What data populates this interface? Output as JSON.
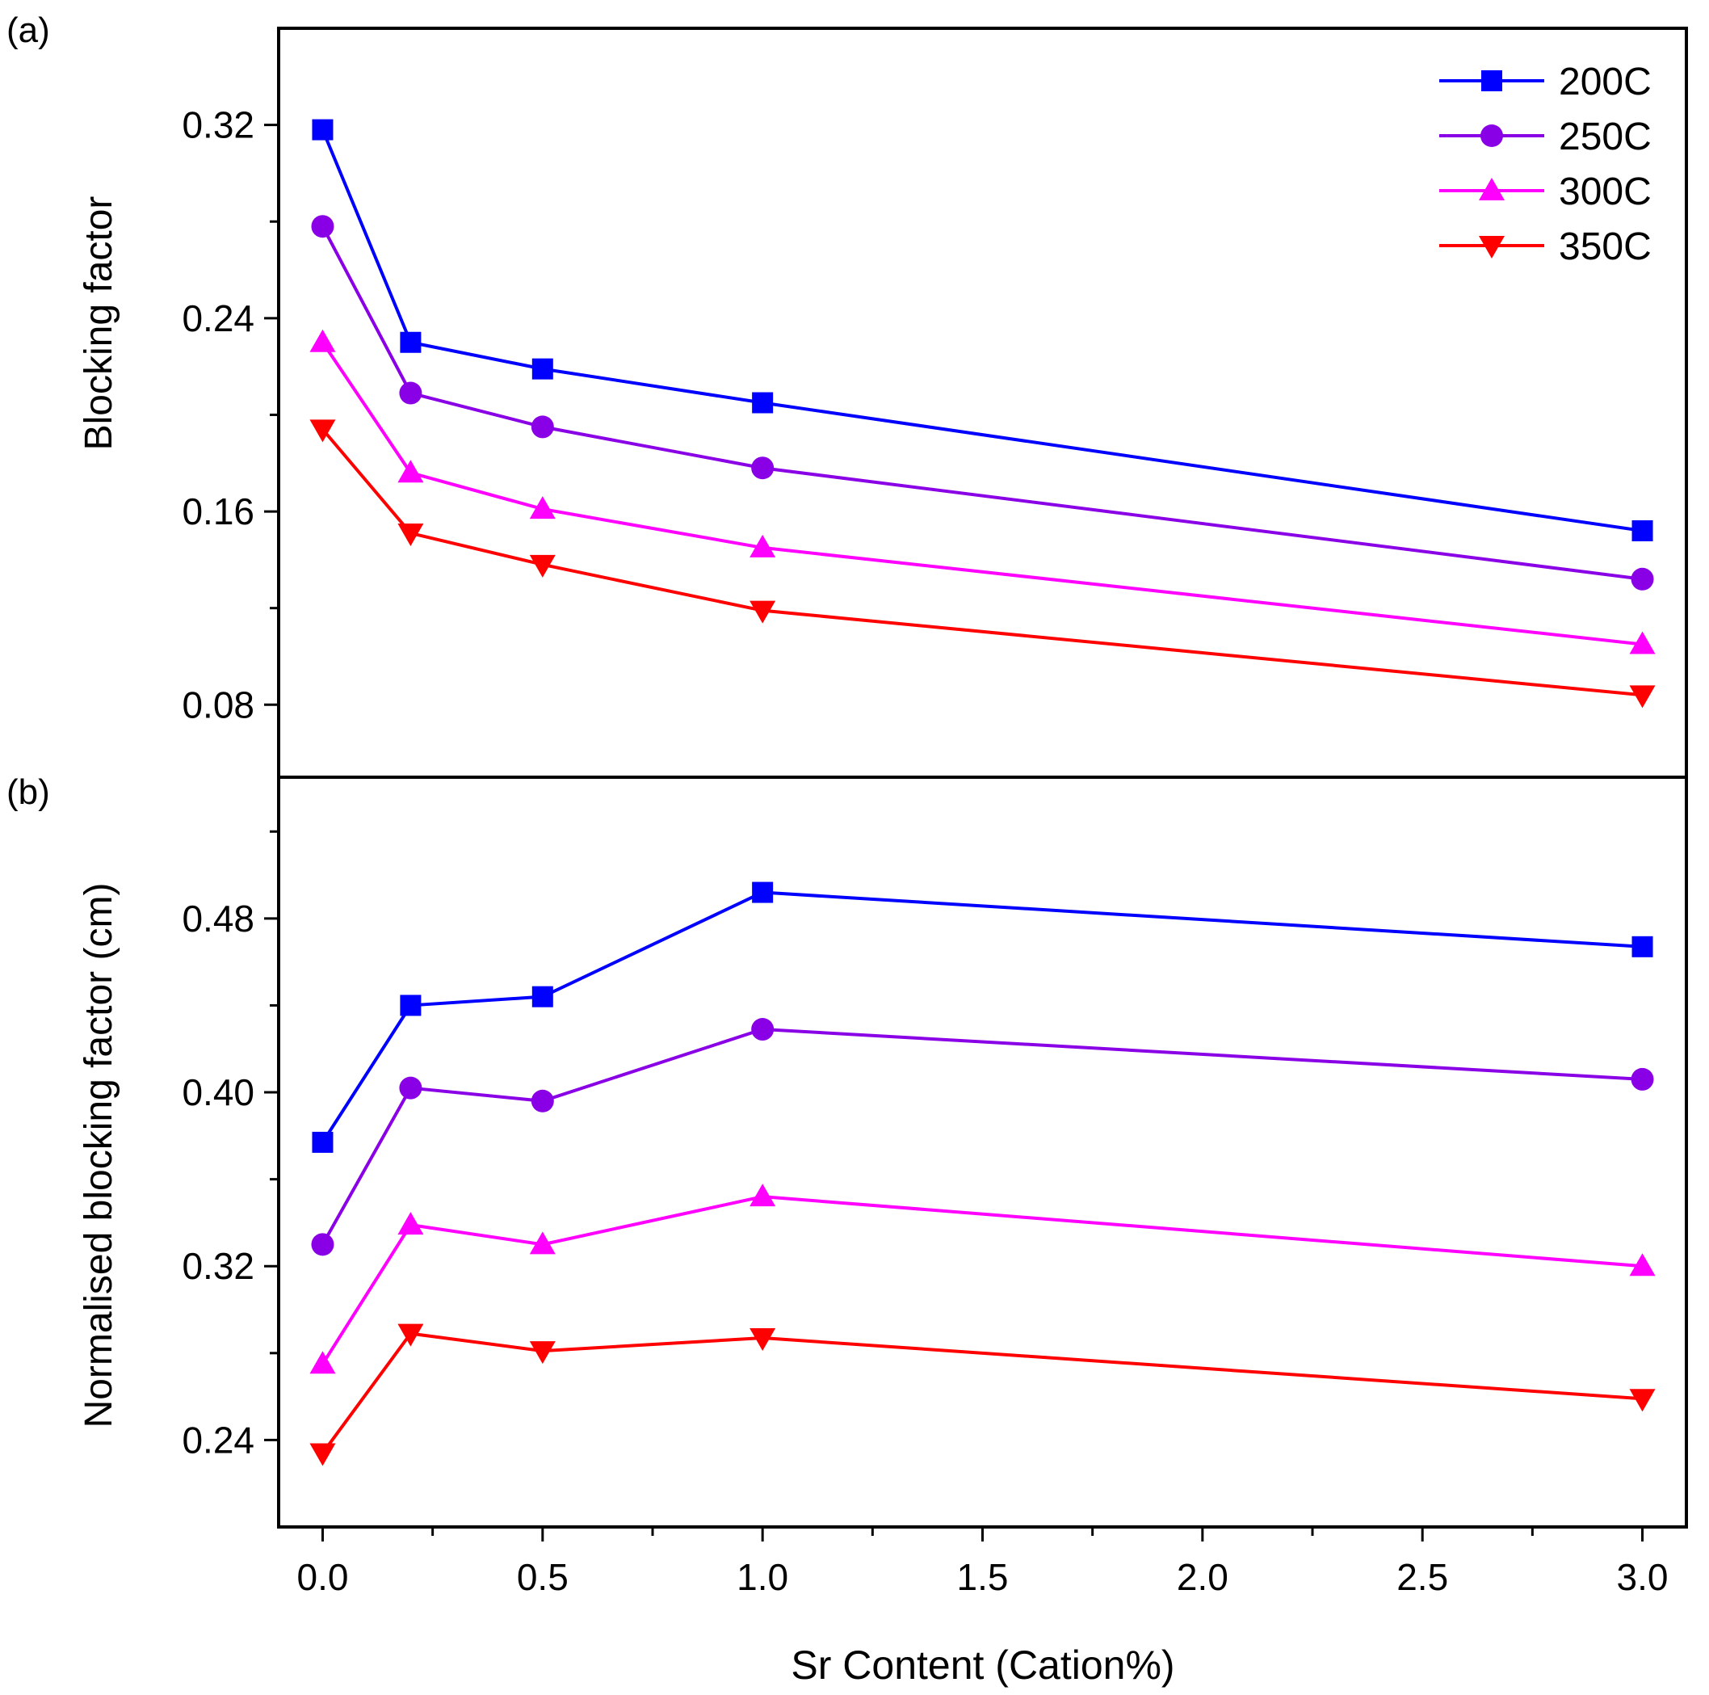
{
  "figure": {
    "xlabel": "Sr Content (Cation%)",
    "x_ticks": [
      "0.0",
      "0.5",
      "1.0",
      "1.5",
      "2.0",
      "2.5",
      "3.0"
    ]
  },
  "chart_data": [
    {
      "type": "line",
      "panel_label": "(a)",
      "title": "",
      "xlabel": "Sr Content (Cation%)",
      "ylabel": "Blocking factor",
      "xlim": [
        -0.1,
        3.1
      ],
      "ylim": [
        0.05,
        0.36
      ],
      "y_ticks": [
        "0.08",
        "0.16",
        "0.24",
        "0.32"
      ],
      "grid": false,
      "legend": "top-right",
      "x": [
        0.0,
        0.2,
        0.5,
        1.0,
        3.0
      ],
      "series": [
        {
          "name": "200C",
          "color": "#0000ff",
          "marker": "square",
          "values": [
            0.318,
            0.23,
            0.219,
            0.205,
            0.152
          ]
        },
        {
          "name": "250C",
          "color": "#8a00e6",
          "marker": "circle",
          "values": [
            0.278,
            0.209,
            0.195,
            0.178,
            0.132
          ]
        },
        {
          "name": "300C",
          "color": "#ff00ff",
          "marker": "triangle-up",
          "values": [
            0.23,
            0.176,
            0.161,
            0.145,
            0.105
          ]
        },
        {
          "name": "350C",
          "color": "#ff0000",
          "marker": "triangle-down",
          "values": [
            0.194,
            0.151,
            0.138,
            0.119,
            0.084
          ]
        }
      ]
    },
    {
      "type": "line",
      "panel_label": "(b)",
      "title": "",
      "xlabel": "Sr Content (Cation%)",
      "ylabel": "Normalised blocking factor (cm)",
      "xlim": [
        -0.1,
        3.1
      ],
      "ylim": [
        0.2,
        0.545
      ],
      "y_ticks": [
        "0.24",
        "0.32",
        "0.40",
        "0.48"
      ],
      "grid": false,
      "x": [
        0.0,
        0.2,
        0.5,
        1.0,
        3.0
      ],
      "series": [
        {
          "name": "200C",
          "color": "#0000ff",
          "marker": "square",
          "values": [
            0.377,
            0.44,
            0.444,
            0.492,
            0.467
          ]
        },
        {
          "name": "250C",
          "color": "#8a00e6",
          "marker": "circle",
          "values": [
            0.33,
            0.402,
            0.396,
            0.429,
            0.406
          ]
        },
        {
          "name": "300C",
          "color": "#ff00ff",
          "marker": "triangle-up",
          "values": [
            0.275,
            0.339,
            0.33,
            0.352,
            0.32
          ]
        },
        {
          "name": "350C",
          "color": "#ff0000",
          "marker": "triangle-down",
          "values": [
            0.234,
            0.289,
            0.281,
            0.287,
            0.259
          ]
        }
      ]
    }
  ]
}
